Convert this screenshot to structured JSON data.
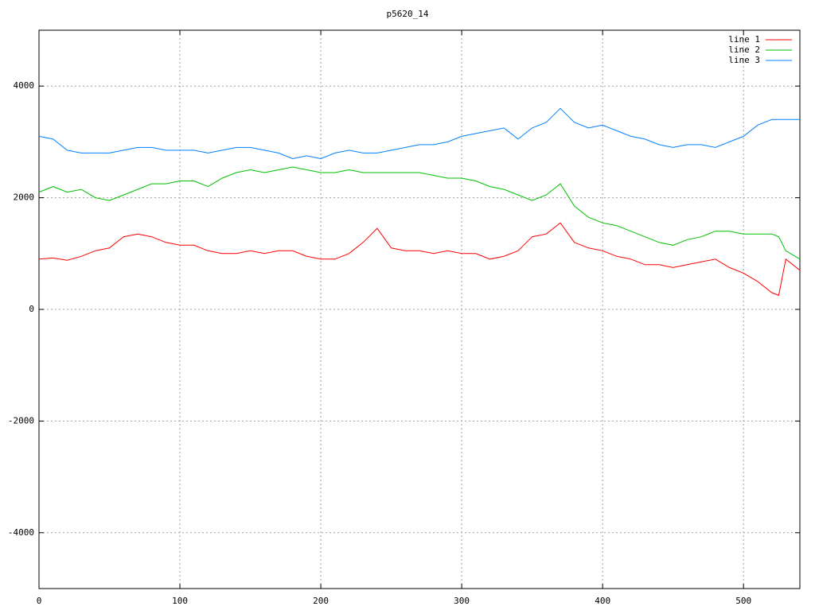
{
  "chart_data": {
    "type": "line",
    "title": "p5620_14",
    "x": [
      0,
      10,
      20,
      30,
      40,
      50,
      60,
      70,
      80,
      90,
      100,
      110,
      120,
      130,
      140,
      150,
      160,
      170,
      180,
      190,
      200,
      210,
      220,
      230,
      240,
      250,
      260,
      270,
      280,
      290,
      300,
      310,
      320,
      330,
      340,
      350,
      360,
      370,
      380,
      390,
      400,
      410,
      420,
      430,
      440,
      450,
      460,
      470,
      480,
      490,
      500,
      510,
      520,
      525,
      530,
      540
    ],
    "series": [
      {
        "name": "line 1",
        "color": "#ff0000",
        "values": [
          900,
          920,
          880,
          950,
          1050,
          1100,
          1300,
          1350,
          1300,
          1200,
          1150,
          1150,
          1050,
          1000,
          1000,
          1050,
          1000,
          1050,
          1050,
          950,
          900,
          900,
          1000,
          1200,
          1450,
          1100,
          1050,
          1050,
          1000,
          1050,
          1000,
          1000,
          900,
          950,
          1050,
          1300,
          1350,
          1550,
          1200,
          1100,
          1050,
          950,
          900,
          800,
          800,
          750,
          800,
          850,
          900,
          750,
          650,
          500,
          300,
          250,
          900,
          700
        ]
      },
      {
        "name": "line 2",
        "color": "#00c000",
        "values": [
          2100,
          2200,
          2100,
          2150,
          2000,
          1950,
          2050,
          2150,
          2250,
          2250,
          2300,
          2300,
          2200,
          2350,
          2450,
          2500,
          2450,
          2500,
          2550,
          2500,
          2450,
          2450,
          2500,
          2450,
          2450,
          2450,
          2450,
          2450,
          2400,
          2350,
          2350,
          2300,
          2200,
          2150,
          2050,
          1950,
          2050,
          2250,
          1850,
          1650,
          1550,
          1500,
          1400,
          1300,
          1200,
          1150,
          1250,
          1300,
          1400,
          1400,
          1350,
          1350,
          1350,
          1300,
          1050,
          900
        ]
      },
      {
        "name": "line 3",
        "color": "#0080ff",
        "values": [
          3100,
          3050,
          2850,
          2800,
          2800,
          2800,
          2850,
          2900,
          2900,
          2850,
          2850,
          2850,
          2800,
          2850,
          2900,
          2900,
          2850,
          2800,
          2700,
          2750,
          2700,
          2800,
          2850,
          2800,
          2800,
          2850,
          2900,
          2950,
          2950,
          3000,
          3100,
          3150,
          3200,
          3250,
          3050,
          3250,
          3350,
          3600,
          3350,
          3250,
          3300,
          3200,
          3100,
          3050,
          2950,
          2900,
          2950,
          2950,
          2900,
          3000,
          3100,
          3300,
          3400,
          3400,
          3400,
          3400
        ]
      }
    ],
    "xlim": [
      0,
      540
    ],
    "xticks": [
      0,
      100,
      200,
      300,
      400,
      500
    ],
    "ylim": [
      -5000,
      5000
    ],
    "yticks": [
      -4000,
      -2000,
      0,
      2000,
      4000
    ],
    "grid": true,
    "legend": "top-right"
  }
}
